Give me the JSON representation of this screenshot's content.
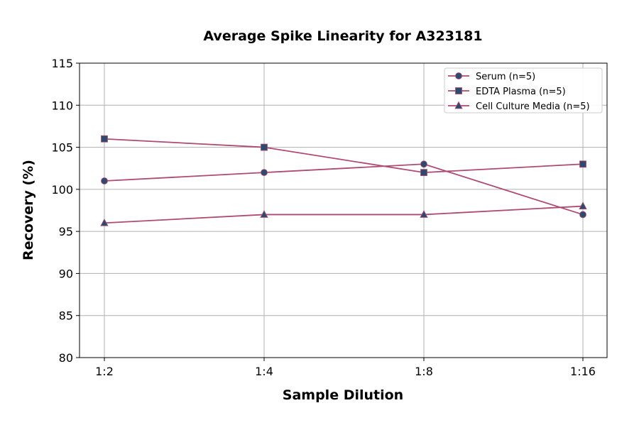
{
  "chart_data": {
    "type": "line",
    "title": "Average Spike Linearity for A323181",
    "xlabel": "Sample Dilution",
    "ylabel": "Recovery (%)",
    "categories": [
      "1:2",
      "1:4",
      "1:8",
      "1:16"
    ],
    "ylim": [
      80,
      115
    ],
    "yticks": [
      80,
      85,
      90,
      95,
      100,
      105,
      110,
      115
    ],
    "grid": true,
    "legend_position": "top-right",
    "line_color": "#b04a72",
    "marker_color": "#2e4a6e",
    "series": [
      {
        "name": "Serum (n=5)",
        "marker": "circle",
        "values": [
          101,
          102,
          103,
          97
        ]
      },
      {
        "name": "EDTA Plasma (n=5)",
        "marker": "square",
        "values": [
          106,
          105,
          102,
          103
        ]
      },
      {
        "name": "Cell Culture Media (n=5)",
        "marker": "triangle",
        "values": [
          96,
          97,
          97,
          98
        ]
      }
    ]
  }
}
